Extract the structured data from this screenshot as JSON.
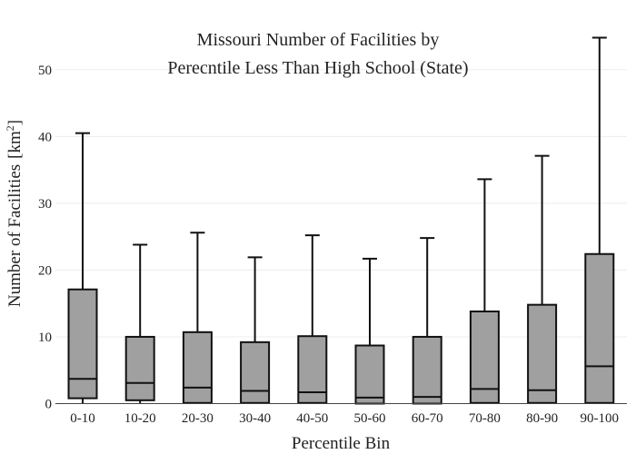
{
  "chart_data": {
    "type": "box",
    "title_line1": "Missouri Number of Facilities by",
    "title_line2": "Perecntile Less Than High School (State)",
    "xlabel": "Percentile Bin",
    "ylabel": "Number of Facilities",
    "ylabel_unit_base": "[km",
    "ylabel_unit_sup": "2",
    "ylabel_unit_close": "]",
    "ylim": [
      0,
      55
    ],
    "yticks": [
      0,
      10,
      20,
      30,
      40,
      50
    ],
    "grid": true,
    "colors": {
      "box_fill": "#a0a0a0",
      "line": "#111111",
      "grid": "#ececec"
    },
    "categories": [
      "0-10",
      "10-20",
      "20-30",
      "30-40",
      "40-50",
      "50-60",
      "60-70",
      "70-80",
      "80-90",
      "90-100"
    ],
    "boxes": [
      {
        "min": 0,
        "q1": 0.8,
        "median": 3.7,
        "q3": 17.1,
        "max": 40.5
      },
      {
        "min": 0,
        "q1": 0.5,
        "median": 3.1,
        "q3": 10.0,
        "max": 23.8
      },
      {
        "min": 0,
        "q1": 0.1,
        "median": 2.4,
        "q3": 10.7,
        "max": 25.6
      },
      {
        "min": 0,
        "q1": 0.1,
        "median": 1.9,
        "q3": 9.2,
        "max": 21.9
      },
      {
        "min": 0,
        "q1": 0.1,
        "median": 1.7,
        "q3": 10.1,
        "max": 25.2
      },
      {
        "min": 0,
        "q1": 0.0,
        "median": 0.9,
        "q3": 8.7,
        "max": 21.7
      },
      {
        "min": 0,
        "q1": 0.0,
        "median": 1.0,
        "q3": 10.0,
        "max": 24.8
      },
      {
        "min": 0,
        "q1": 0.1,
        "median": 2.2,
        "q3": 13.8,
        "max": 33.6
      },
      {
        "min": 0,
        "q1": 0.1,
        "median": 2.0,
        "q3": 14.8,
        "max": 37.1
      },
      {
        "min": 0,
        "q1": 0.1,
        "median": 5.6,
        "q3": 22.4,
        "max": 54.8
      }
    ]
  }
}
